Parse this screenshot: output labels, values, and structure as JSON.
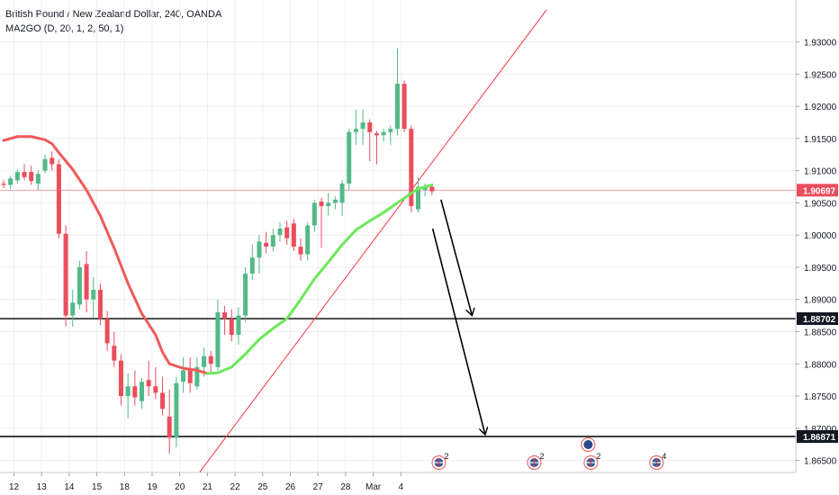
{
  "header": {
    "title": "British Pound / New Zealand Dollar, 240, OANDA",
    "indicator": "MA2GO (D, 20, 1, 2, 50, 1)"
  },
  "chart_data": {
    "type": "candlestick",
    "ylim": [
      1.862,
      1.934
    ],
    "price_ticks": [
      "1.93000",
      "1.92500",
      "1.92000",
      "1.91500",
      "1.91000",
      "1.90500",
      "1.90000",
      "1.89500",
      "1.89000",
      "1.88500",
      "1.88000",
      "1.87500",
      "1.87000",
      "1.86500"
    ],
    "x_labels": [
      {
        "label": "12",
        "x": 1.5
      },
      {
        "label": "13",
        "x": 5.5
      },
      {
        "label": "14",
        "x": 9.5
      },
      {
        "label": "15",
        "x": 13.5
      },
      {
        "label": "18",
        "x": 17.5
      },
      {
        "label": "19",
        "x": 21.5
      },
      {
        "label": "20",
        "x": 25.5
      },
      {
        "label": "21",
        "x": 29.5
      },
      {
        "label": "22",
        "x": 33.5
      },
      {
        "label": "25",
        "x": 37.5
      },
      {
        "label": "26",
        "x": 41.5
      },
      {
        "label": "27",
        "x": 45.5
      },
      {
        "label": "28",
        "x": 49.5
      },
      {
        "label": "Mar",
        "x": 53.5
      },
      {
        "label": "4",
        "x": 57.5
      }
    ],
    "candles": [
      [
        1.908,
        1.9085,
        1.9073,
        1.9078
      ],
      [
        1.9078,
        1.9092,
        1.9072,
        1.9088
      ],
      [
        1.9085,
        1.9102,
        1.908,
        1.9098
      ],
      [
        1.9098,
        1.911,
        1.9085,
        1.909
      ],
      [
        1.9098,
        1.9108,
        1.9078,
        1.9084
      ],
      [
        1.908,
        1.91,
        1.907,
        1.9095
      ],
      [
        1.91,
        1.9125,
        1.9096,
        1.9118
      ],
      [
        1.912,
        1.913,
        1.91,
        1.911
      ],
      [
        1.911,
        1.9118,
        1.8995,
        1.9002
      ],
      [
        1.9002,
        1.9015,
        1.8858,
        1.8875
      ],
      [
        1.8875,
        1.8915,
        1.8858,
        1.8895
      ],
      [
        1.8892,
        1.896,
        1.8885,
        1.895
      ],
      [
        1.8955,
        1.8975,
        1.888,
        1.89
      ],
      [
        1.89,
        1.8935,
        1.8872,
        1.8915
      ],
      [
        1.8915,
        1.8925,
        1.886,
        1.887
      ],
      [
        1.887,
        1.8882,
        1.882,
        1.8832
      ],
      [
        1.8828,
        1.885,
        1.8795,
        1.8805
      ],
      [
        1.8805,
        1.8815,
        1.8735,
        1.875
      ],
      [
        1.875,
        1.8785,
        1.8715,
        1.8765
      ],
      [
        1.8765,
        1.879,
        1.8735,
        1.8748
      ],
      [
        1.8742,
        1.8778,
        1.873,
        1.8772
      ],
      [
        1.8775,
        1.8805,
        1.875,
        1.8765
      ],
      [
        1.8765,
        1.8795,
        1.8745,
        1.8755
      ],
      [
        1.8755,
        1.878,
        1.872,
        1.873
      ],
      [
        1.8718,
        1.876,
        1.866,
        1.8685
      ],
      [
        1.8685,
        1.878,
        1.867,
        1.877
      ],
      [
        1.8772,
        1.881,
        1.8755,
        1.879
      ],
      [
        1.879,
        1.881,
        1.8755,
        1.877
      ],
      [
        1.8765,
        1.881,
        1.876,
        1.8795
      ],
      [
        1.8795,
        1.8825,
        1.878,
        1.8812
      ],
      [
        1.8812,
        1.882,
        1.8785,
        1.88
      ],
      [
        1.8795,
        1.89,
        1.879,
        1.888
      ],
      [
        1.888,
        1.889,
        1.8845,
        1.887
      ],
      [
        1.887,
        1.8885,
        1.8835,
        1.8845
      ],
      [
        1.8845,
        1.8888,
        1.883,
        1.8875
      ],
      [
        1.8875,
        1.895,
        1.8865,
        1.894
      ],
      [
        1.894,
        1.8985,
        1.893,
        1.8965
      ],
      [
        1.8965,
        1.9,
        1.894,
        1.899
      ],
      [
        1.8988,
        1.9005,
        1.8972,
        1.8982
      ],
      [
        1.8982,
        1.901,
        1.8975,
        1.9
      ],
      [
        1.9,
        1.902,
        1.899,
        1.901
      ],
      [
        1.9012,
        1.9022,
        1.8985,
        1.8995
      ],
      [
        1.9018,
        1.9025,
        1.8975,
        1.8982
      ],
      [
        1.8982,
        1.8995,
        1.896,
        1.897
      ],
      [
        1.897,
        1.902,
        1.896,
        1.9015
      ],
      [
        1.9015,
        1.9055,
        1.9005,
        1.905
      ],
      [
        1.9052,
        1.9058,
        1.898,
        1.9045
      ],
      [
        1.9045,
        1.9065,
        1.903,
        1.905
      ],
      [
        1.905,
        1.906,
        1.904,
        1.9055
      ],
      [
        1.905,
        1.9085,
        1.903,
        1.908
      ],
      [
        1.908,
        1.9165,
        1.907,
        1.916
      ],
      [
        1.916,
        1.9195,
        1.914,
        1.9165
      ],
      [
        1.9165,
        1.9195,
        1.914,
        1.9175
      ],
      [
        1.9175,
        1.918,
        1.9115,
        1.916
      ],
      [
        1.9158,
        1.9162,
        1.911,
        1.9155
      ],
      [
        1.9155,
        1.9165,
        1.9145,
        1.916
      ],
      [
        1.916,
        1.917,
        1.914,
        1.9165
      ],
      [
        1.9165,
        1.929,
        1.9155,
        1.9235
      ],
      [
        1.9235,
        1.924,
        1.916,
        1.9165
      ],
      [
        1.9165,
        1.917,
        1.9035,
        1.9045
      ],
      [
        1.904,
        1.909,
        1.9035,
        1.9075
      ],
      [
        1.907,
        1.908,
        1.906,
        1.9075
      ],
      [
        1.9075,
        1.908,
        1.9062,
        1.9068
      ]
    ],
    "ma_line": [
      [
        0,
        1.9147
      ],
      [
        2,
        1.9153
      ],
      [
        4,
        1.9153
      ],
      [
        6,
        1.9148
      ],
      [
        7,
        1.9142
      ],
      [
        8,
        1.9128
      ],
      [
        10,
        1.9102
      ],
      [
        12,
        1.907
      ],
      [
        14,
        1.903
      ],
      [
        16,
        1.898
      ],
      [
        18,
        1.8925
      ],
      [
        20,
        1.8878
      ],
      [
        22,
        1.8845
      ],
      [
        23,
        1.8818
      ],
      [
        24,
        1.88
      ],
      [
        26,
        1.8793
      ],
      [
        28,
        1.879
      ],
      [
        29.5,
        1.8785
      ],
      [
        31,
        1.8786
      ],
      [
        33,
        1.8795
      ],
      [
        35,
        1.8815
      ],
      [
        37,
        1.8838
      ],
      [
        39,
        1.8855
      ],
      [
        41,
        1.887
      ],
      [
        43,
        1.89
      ],
      [
        45,
        1.8932
      ],
      [
        47,
        1.8958
      ],
      [
        49,
        1.8985
      ],
      [
        51,
        1.9008
      ],
      [
        53,
        1.9022
      ],
      [
        55,
        1.9035
      ],
      [
        57,
        1.905
      ],
      [
        59,
        1.9065
      ],
      [
        60,
        1.9072
      ],
      [
        62,
        1.9078
      ]
    ],
    "ma_red_until": 29.5,
    "trendline": {
      "from": [
        28.4,
        1.8632
      ],
      "to": [
        78.6,
        1.935
      ]
    },
    "current_price": {
      "label": "1.90697",
      "value": 1.90697
    },
    "support_levels": [
      {
        "label": "1.88702",
        "value": 1.88702
      },
      {
        "label": "1.86871",
        "value": 1.86871
      }
    ],
    "arrows": [
      {
        "from": [
          63.3,
          1.9055
        ],
        "to": [
          67.8,
          1.8875
        ]
      },
      {
        "from": [
          62.1,
          1.901
        ],
        "to": [
          69.7,
          1.869
        ]
      }
    ],
    "events": [
      {
        "x": 63.0,
        "count": "2"
      },
      {
        "x": 76.8,
        "count": "2"
      },
      {
        "x": 85.0,
        "count": "2"
      },
      {
        "x": 94.5,
        "count": "4"
      }
    ]
  }
}
